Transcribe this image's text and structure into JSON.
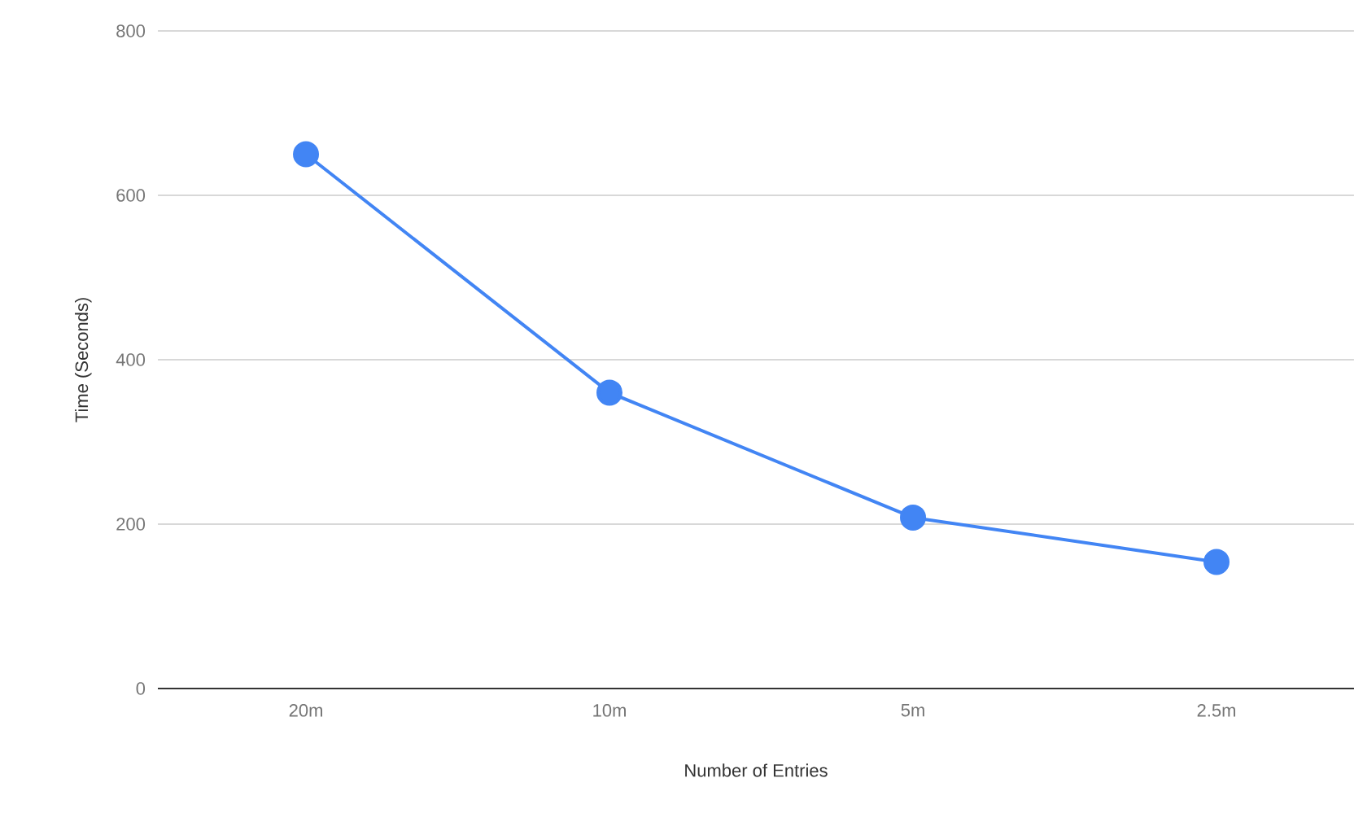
{
  "chart_data": {
    "type": "line",
    "xlabel": "Number of Entries",
    "ylabel": "Time  (Seconds)",
    "categories": [
      "20m",
      "10m",
      "5m",
      "2.5m"
    ],
    "series": [
      {
        "color": "#4285f4",
        "values": [
          650,
          360,
          208,
          154
        ]
      }
    ],
    "ylim": [
      0,
      800
    ],
    "yticks": [
      0,
      200,
      400,
      600,
      800
    ],
    "grid": "y",
    "marker": "circle",
    "line_style": "solid"
  }
}
